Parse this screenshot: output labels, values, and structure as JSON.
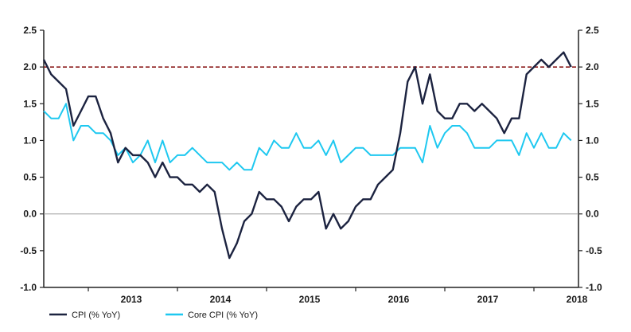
{
  "chart_data": {
    "type": "line",
    "title": "",
    "xlabel": "",
    "ylabel": "",
    "ylim": [
      -1.0,
      2.5
    ],
    "yticks": [
      "2.5",
      "2.0",
      "1.5",
      "1.0",
      "0.5",
      "0.0",
      "-0.5",
      "-1.0"
    ],
    "xtick_labels": [
      "2013",
      "2014",
      "2015",
      "2016",
      "2017",
      "2018"
    ],
    "x_range": [
      "2012-07",
      "2018-07"
    ],
    "grid": false,
    "legend_position": "bottom-left",
    "reference_lines": [
      {
        "y": 2.0,
        "style": "dashed",
        "color": "#8b1a1a"
      },
      {
        "y": 0.0,
        "style": "solid",
        "color": "#999999"
      }
    ],
    "x": [
      "2012-07",
      "2012-08",
      "2012-09",
      "2012-10",
      "2012-11",
      "2012-12",
      "2013-01",
      "2013-02",
      "2013-03",
      "2013-04",
      "2013-05",
      "2013-06",
      "2013-07",
      "2013-08",
      "2013-09",
      "2013-10",
      "2013-11",
      "2013-12",
      "2014-01",
      "2014-02",
      "2014-03",
      "2014-04",
      "2014-05",
      "2014-06",
      "2014-07",
      "2014-08",
      "2014-09",
      "2014-10",
      "2014-11",
      "2014-12",
      "2015-01",
      "2015-02",
      "2015-03",
      "2015-04",
      "2015-05",
      "2015-06",
      "2015-07",
      "2015-08",
      "2015-09",
      "2015-10",
      "2015-11",
      "2015-12",
      "2016-01",
      "2016-02",
      "2016-03",
      "2016-04",
      "2016-05",
      "2016-06",
      "2016-07",
      "2016-08",
      "2016-09",
      "2016-10",
      "2016-11",
      "2016-12",
      "2017-01",
      "2017-02",
      "2017-03",
      "2017-04",
      "2017-05",
      "2017-06",
      "2017-07",
      "2017-08",
      "2017-09",
      "2017-10",
      "2017-11",
      "2017-12",
      "2018-01",
      "2018-02",
      "2018-03",
      "2018-04",
      "2018-05",
      "2018-06"
    ],
    "series": [
      {
        "name": "CPI (% YoY)",
        "color": "#1c2340",
        "values": [
          2.1,
          1.9,
          1.8,
          1.7,
          1.2,
          1.4,
          1.6,
          1.6,
          1.3,
          1.1,
          0.7,
          0.9,
          0.8,
          0.8,
          0.7,
          0.5,
          0.7,
          0.5,
          0.5,
          0.4,
          0.4,
          0.3,
          0.4,
          0.3,
          -0.2,
          -0.6,
          -0.4,
          -0.1,
          0.0,
          0.3,
          0.2,
          0.2,
          0.1,
          -0.1,
          0.1,
          0.2,
          0.2,
          0.3,
          -0.2,
          0.0,
          -0.2,
          -0.1,
          0.1,
          0.2,
          0.2,
          0.4,
          0.5,
          0.6,
          1.1,
          1.8,
          2.0,
          1.5,
          1.9,
          1.4,
          1.3,
          1.3,
          1.5,
          1.5,
          1.4,
          1.5,
          1.4,
          1.3,
          1.1,
          1.3,
          1.3,
          1.9,
          2.0,
          2.1,
          2.0,
          2.1,
          2.2,
          2.0
        ]
      },
      {
        "name": "Core CPI (% YoY)",
        "color": "#1ec8f0",
        "values": [
          1.4,
          1.3,
          1.3,
          1.5,
          1.0,
          1.2,
          1.2,
          1.1,
          1.1,
          1.0,
          0.8,
          0.9,
          0.7,
          0.8,
          1.0,
          0.7,
          1.0,
          0.7,
          0.8,
          0.8,
          0.9,
          0.8,
          0.7,
          0.7,
          0.7,
          0.6,
          0.7,
          0.6,
          0.6,
          0.9,
          0.8,
          1.0,
          0.9,
          0.9,
          1.1,
          0.9,
          0.9,
          1.0,
          0.8,
          1.0,
          0.7,
          0.8,
          0.9,
          0.9,
          0.8,
          0.8,
          0.8,
          0.8,
          0.9,
          0.9,
          0.9,
          0.7,
          1.2,
          0.9,
          1.1,
          1.2,
          1.2,
          1.1,
          0.9,
          0.9,
          0.9,
          1.0,
          1.0,
          1.0,
          0.8,
          1.1,
          0.9,
          1.1,
          0.9,
          0.9,
          1.1,
          1.0
        ]
      }
    ]
  }
}
